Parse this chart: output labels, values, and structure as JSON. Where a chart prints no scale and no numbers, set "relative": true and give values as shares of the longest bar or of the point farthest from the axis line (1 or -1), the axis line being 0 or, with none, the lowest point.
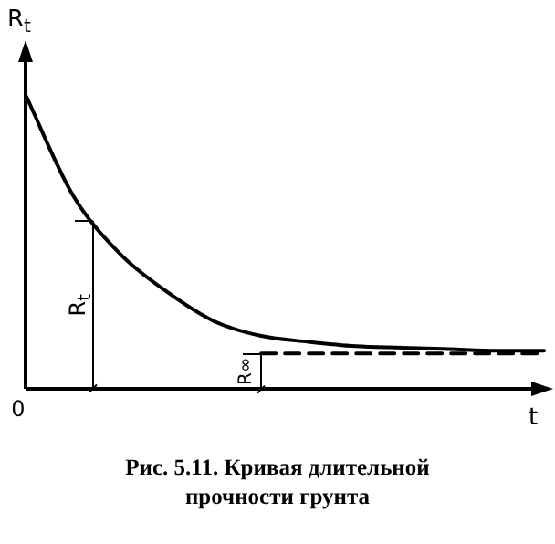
{
  "chart_data": {
    "type": "line",
    "relative": true,
    "title": "Рис. 5.11. Кривая длительной прочности грунта",
    "ylabel": "R$_{t}$",
    "xlabel": "t",
    "categories": [
      null,
      null,
      null,
      null,
      null,
      null,
      null,
      null,
      null,
      null,
      null,
      null
    ],
    "series": [
      {
        "color": "#000000",
        "line_style": "solid",
        "values": [
          1.0,
          0.66,
          0.46,
          0.33,
          0.23,
          0.18,
          0.16,
          0.145,
          0.14,
          0.135,
          0.13,
          0.13
        ]
      },
      {
        "color": "#000000",
        "line_style": "dashed",
        "values": [
          null,
          null,
          null,
          null,
          null,
          0.12,
          0.12,
          0.12,
          0.12,
          0.12,
          0.12,
          0.12
        ]
      }
    ],
    "annotations": [
      "R$_{t}$",
      "R∞",
      "0"
    ],
    "marker": "none",
    "grid": false,
    "legend": false
  }
}
